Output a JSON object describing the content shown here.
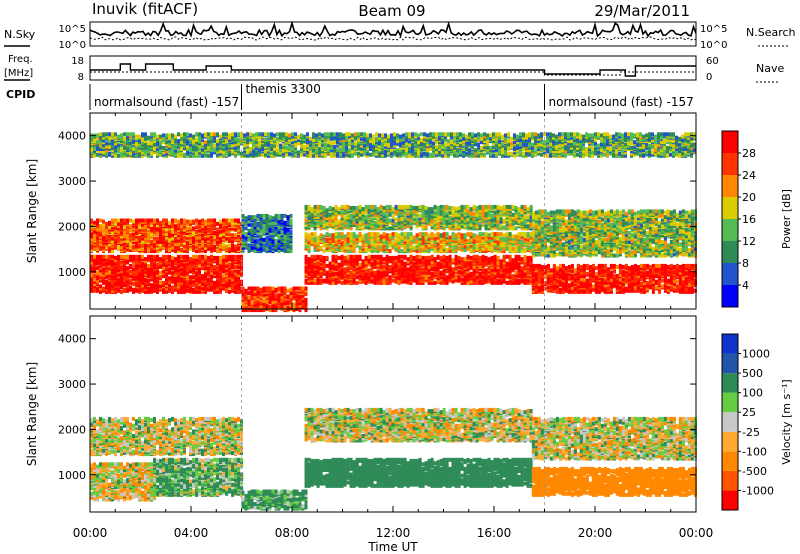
{
  "header": {
    "station": "Inuvik (fitACF)",
    "beam": "Beam 09",
    "date": "29/Mar/2011"
  },
  "noise_panel": {
    "left_label": "N.Sky",
    "right_label": "N.Search",
    "left_ticks": [
      "10^5",
      "10^0"
    ],
    "right_ticks": [
      "10^5",
      "10^0"
    ]
  },
  "freq_panel": {
    "left_label_line1": "Freq.",
    "left_label_line2": "[MHz]",
    "right_label": "Nave",
    "left_ticks": [
      "18",
      "8"
    ],
    "right_ticks": [
      "60",
      "0"
    ]
  },
  "cpid": {
    "label": "CPID",
    "segments": [
      {
        "name": "normalsound (fast) -157",
        "start_h": 0,
        "end_h": 6
      },
      {
        "name": "themis 3300",
        "start_h": 6,
        "end_h": 18
      },
      {
        "name": "normalsound (fast) -157",
        "start_h": 18,
        "end_h": 24
      }
    ]
  },
  "x_axis": {
    "label": "Time UT",
    "range_h": [
      0,
      24
    ],
    "ticks": [
      "00:00",
      "04:00",
      "08:00",
      "12:00",
      "16:00",
      "20:00",
      "00:00"
    ]
  },
  "panels": [
    {
      "id": "power",
      "ylabel": "Slant Range [km]",
      "yticks": [
        "4000",
        "3000",
        "2000",
        "1000"
      ],
      "colorbar_label": "Power [dB]",
      "colorbar_ticks": [
        "28",
        "24",
        "20",
        "16",
        "12",
        "8",
        "4"
      ],
      "colors": [
        "#0000ff",
        "#2255cc",
        "#2e8b57",
        "#55bb55",
        "#ddcc00",
        "#ff8800",
        "#ff3300",
        "#ff0000"
      ]
    },
    {
      "id": "velocity",
      "ylabel": "Slant Range [km]",
      "yticks": [
        "4000",
        "3000",
        "2000",
        "1000"
      ],
      "colorbar_label": "Velocity [m s⁻¹]",
      "colorbar_ticks": [
        "1000",
        "500",
        "100",
        "25",
        "-25",
        "-100",
        "-500",
        "-1000"
      ],
      "colors": [
        "#ff0000",
        "#ff5500",
        "#ff8800",
        "#ffaa33",
        "#c8c8c8",
        "#66cc44",
        "#2e8b57",
        "#2255aa",
        "#1133cc"
      ]
    }
  ],
  "chart_data": [
    {
      "type": "heatmap",
      "title": "Power",
      "xlabel": "Time UT",
      "ylabel": "Slant Range [km]",
      "xlim_hours": [
        0,
        24
      ],
      "ylim_km": [
        180,
        4500
      ],
      "colorbar_unit": "dB",
      "colorbar_range": [
        0,
        30
      ],
      "bands": [
        {
          "h0": 0.0,
          "h1": 6.0,
          "r0": 600,
          "r1": 1400,
          "value": 28
        },
        {
          "h0": 0.0,
          "h1": 6.0,
          "r0": 1500,
          "r1": 2200,
          "value": 24
        },
        {
          "h0": 6.0,
          "h1": 8.5,
          "r0": 200,
          "r1": 700,
          "value": 26
        },
        {
          "h0": 6.0,
          "h1": 8.0,
          "r0": 1500,
          "r1": 2300,
          "value": 8
        },
        {
          "h0": 8.5,
          "h1": 17.5,
          "r0": 800,
          "r1": 1400,
          "value": 28
        },
        {
          "h0": 8.5,
          "h1": 17.5,
          "r0": 1500,
          "r1": 1900,
          "value": 18
        },
        {
          "h0": 8.5,
          "h1": 17.5,
          "r0": 2000,
          "r1": 2500,
          "value": 14
        },
        {
          "h0": 17.5,
          "h1": 24.0,
          "r0": 600,
          "r1": 1200,
          "value": 28
        },
        {
          "h0": 17.5,
          "h1": 24.0,
          "r0": 1400,
          "r1": 2400,
          "value": 14
        },
        {
          "h0": 0.0,
          "h1": 24.0,
          "r0": 3600,
          "r1": 4100,
          "value": 12
        }
      ]
    },
    {
      "type": "heatmap",
      "title": "Velocity",
      "xlabel": "Time UT",
      "ylabel": "Slant Range [km]",
      "xlim_hours": [
        0,
        24
      ],
      "ylim_km": [
        180,
        4500
      ],
      "colorbar_unit": "m s^-1",
      "colorbar_range": [
        -1000,
        1000
      ],
      "bands": [
        {
          "h0": 0.0,
          "h1": 2.5,
          "r0": 500,
          "r1": 1300,
          "value": -25
        },
        {
          "h0": 2.5,
          "h1": 6.0,
          "r0": 600,
          "r1": 1400,
          "value": 100
        },
        {
          "h0": 0.0,
          "h1": 6.0,
          "r0": 1500,
          "r1": 2300,
          "value": 0
        },
        {
          "h0": 6.0,
          "h1": 8.5,
          "r0": 300,
          "r1": 700,
          "value": 150
        },
        {
          "h0": 8.5,
          "h1": 17.5,
          "r0": 800,
          "r1": 1400,
          "value": 300
        },
        {
          "h0": 8.5,
          "h1": 17.5,
          "r0": 1800,
          "r1": 2500,
          "value": 0
        },
        {
          "h0": 17.5,
          "h1": 24.0,
          "r0": 600,
          "r1": 1200,
          "value": -300
        },
        {
          "h0": 17.5,
          "h1": 24.0,
          "r0": 1400,
          "r1": 2300,
          "value": 0
        }
      ]
    }
  ]
}
